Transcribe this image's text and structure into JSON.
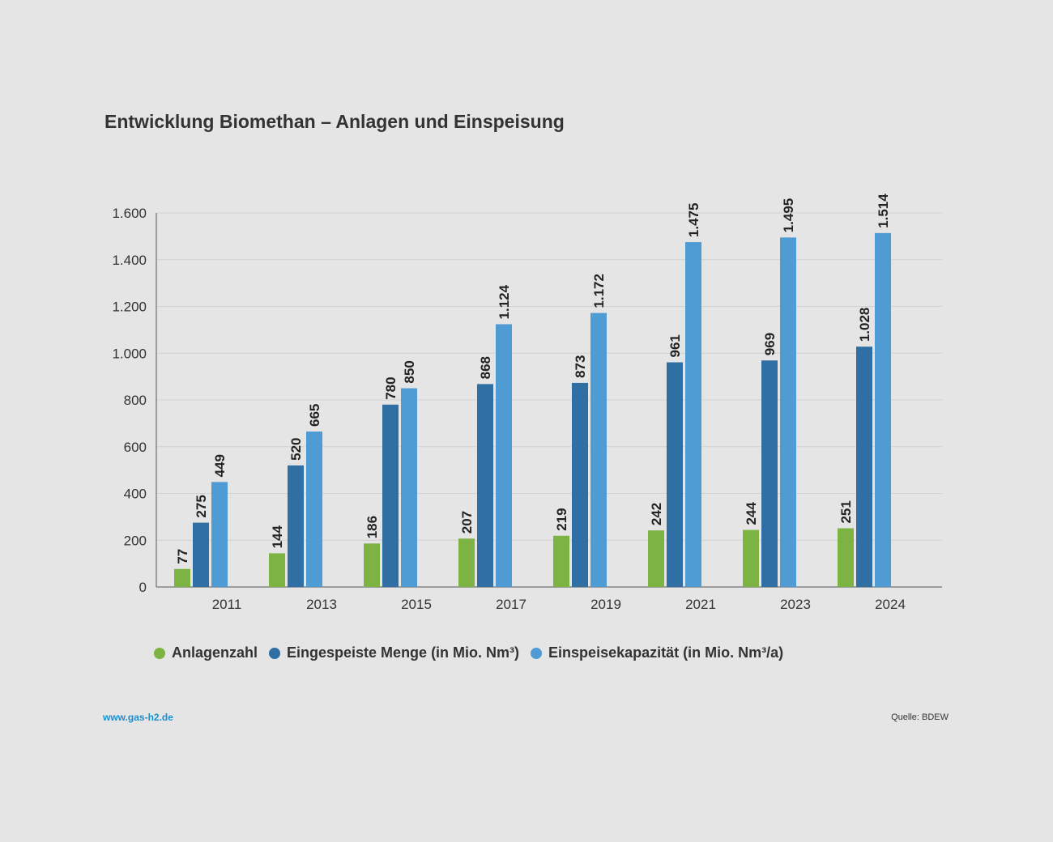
{
  "chart_data": {
    "type": "bar",
    "title": "Entwicklung Biomethan – Anlagen und Einspeisung",
    "categories": [
      "2011",
      "2013",
      "2015",
      "2017",
      "2019",
      "2021",
      "2023",
      "2024"
    ],
    "series": [
      {
        "name": "Anlagenzahl",
        "color": "#7cb342",
        "values": [
          77,
          144,
          186,
          207,
          219,
          242,
          244,
          251
        ],
        "value_labels": [
          "77",
          "144",
          "186",
          "207",
          "219",
          "242",
          "244",
          "251"
        ]
      },
      {
        "name": "Eingespeiste Menge (in Mio. Nm³)",
        "color": "#2f6fa3",
        "values": [
          275,
          520,
          780,
          868,
          873,
          961,
          969,
          1028
        ],
        "value_labels": [
          "275",
          "520",
          "780",
          "868",
          "873",
          "961",
          "969",
          "1.028"
        ]
      },
      {
        "name": "Einspeisekapazität (in Mio. Nm³/a)",
        "color": "#4f9cd5",
        "values": [
          449,
          665,
          850,
          1124,
          1172,
          1475,
          1495,
          1514
        ],
        "value_labels": [
          "449",
          "665",
          "850",
          "1.124",
          "1.172",
          "1.475",
          "1.495",
          "1.514"
        ]
      }
    ],
    "y_ticks": [
      0,
      200,
      400,
      600,
      800,
      1000,
      1200,
      1400,
      1600
    ],
    "y_tick_labels": [
      "0",
      "200",
      "400",
      "600",
      "800",
      "1.000",
      "1.200",
      "1.400",
      "1.600"
    ],
    "ylim": [
      0,
      1600
    ],
    "grid": true,
    "legend_position": "bottom"
  },
  "footer": {
    "source_link": "www.gas-h2.de",
    "source_link_color": "#1a8fd0",
    "credit": "Quelle: BDEW"
  }
}
